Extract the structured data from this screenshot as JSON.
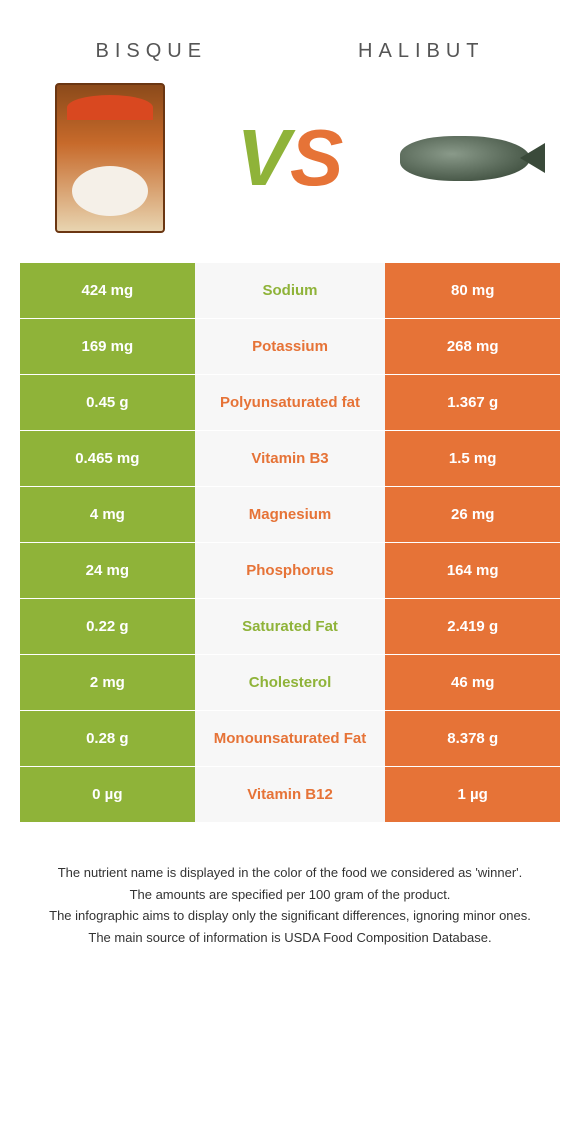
{
  "colors": {
    "green": "#8fb339",
    "orange": "#e67337",
    "mid_bg": "#f7f7f7",
    "text_gray": "#555",
    "white": "#ffffff"
  },
  "food_left": {
    "title": "BISQUE"
  },
  "food_right": {
    "title": "HALIBUT"
  },
  "vs": {
    "v": "V",
    "s": "S"
  },
  "rows": [
    {
      "left": "424 mg",
      "label": "Sodium",
      "right": "80 mg",
      "winner": "left"
    },
    {
      "left": "169 mg",
      "label": "Potassium",
      "right": "268 mg",
      "winner": "right"
    },
    {
      "left": "0.45 g",
      "label": "Polyunsaturated fat",
      "right": "1.367 g",
      "winner": "right"
    },
    {
      "left": "0.465 mg",
      "label": "Vitamin B3",
      "right": "1.5 mg",
      "winner": "right"
    },
    {
      "left": "4 mg",
      "label": "Magnesium",
      "right": "26 mg",
      "winner": "right"
    },
    {
      "left": "24 mg",
      "label": "Phosphorus",
      "right": "164 mg",
      "winner": "right"
    },
    {
      "left": "0.22 g",
      "label": "Saturated Fat",
      "right": "2.419 g",
      "winner": "left"
    },
    {
      "left": "2 mg",
      "label": "Cholesterol",
      "right": "46 mg",
      "winner": "left"
    },
    {
      "left": "0.28 g",
      "label": "Monounsaturated Fat",
      "right": "8.378 g",
      "winner": "right"
    },
    {
      "left": "0 µg",
      "label": "Vitamin B12",
      "right": "1 µg",
      "winner": "right"
    }
  ],
  "footer": {
    "line1": "The nutrient name is displayed in the color of the food we considered as 'winner'.",
    "line2": "The amounts are specified per 100 gram of the product.",
    "line3": "The infographic aims to display only the significant differences, ignoring minor ones.",
    "line4": "The main source of information is USDA Food Composition Database."
  }
}
